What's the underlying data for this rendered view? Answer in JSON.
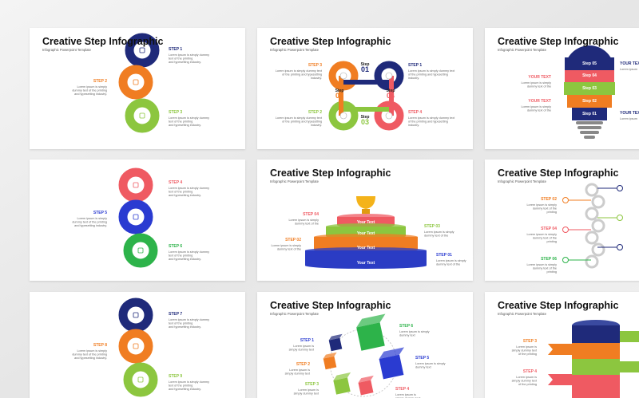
{
  "slides": [
    {
      "title": "Creative Step Infographic",
      "subtitle": "Infographic Powerpoint Template",
      "steps": [
        {
          "label": "STEP 1",
          "lines": [
            "Lorem ipsum is simply dummy",
            "text of the printing",
            "and typesetting industry."
          ]
        },
        {
          "label": "STEP 2",
          "lines": [
            "Lorem ipsum is simply",
            "dummy text of the printing",
            "and typesetting industry."
          ]
        },
        {
          "label": "STEP 3",
          "lines": [
            "Lorem ipsum is simply dummy",
            "text of the printing",
            "and typesetting industry."
          ]
        }
      ]
    },
    {
      "steps": [
        {
          "label": "STEP 4",
          "lines": [
            "Lorem ipsum is simply dummy",
            "text of the printing",
            "and typesetting industry."
          ]
        },
        {
          "label": "STEP 5",
          "lines": [
            "Lorem ipsum is simply",
            "dummy text of the printing",
            "and typesetting industry."
          ]
        },
        {
          "label": "STEP 6",
          "lines": [
            "Lorem ipsum is simply dummy",
            "text of the printing",
            "and typesetting industry."
          ]
        }
      ]
    },
    {
      "steps": [
        {
          "label": "STEP 7",
          "lines": [
            "Lorem ipsum is simply dummy",
            "text of the printing",
            "and typesetting industry."
          ]
        },
        {
          "label": "STEP 8",
          "lines": [
            "Lorem ipsum is simply",
            "dummy text of the printing",
            "and typesetting industry."
          ]
        },
        {
          "label": "STEP 9",
          "lines": [
            "Lorem ipsum is simply dummy",
            "text of the printing",
            "and typesetting industry."
          ]
        }
      ]
    },
    {
      "title": "Creative Step Infographic",
      "subtitle": "Infographic Powerpoint Template",
      "steps": [
        {
          "label": "STEP 3",
          "lines": [
            "Lorem ipsum is simply dummy text",
            "of the printing and typesetting",
            "industry."
          ]
        },
        {
          "label": "STEP 1",
          "lines": [
            "Lorem ipsum is simply dummy text",
            "of the printing and typesetting",
            "industry."
          ]
        },
        {
          "label": "STEP 2",
          "lines": [
            "Lorem ipsum is simply dummy text",
            "of the printing and typesetting",
            "industry."
          ]
        },
        {
          "label": "STEP 4",
          "lines": [
            "Lorem ipsum is simply dummy text",
            "of the printing and typesetting",
            "industry."
          ]
        }
      ],
      "shapes": [
        [
          "Step",
          "01"
        ],
        [
          "Step",
          "02"
        ],
        [
          "Step",
          "03"
        ],
        [
          "Step",
          "04"
        ]
      ]
    },
    {
      "title": "Creative Step Infographic",
      "subtitle": "Infographic Powerpoint Template",
      "steps": [
        {
          "label": "YOUR TEXT",
          "lines": [
            "Lorem ipsum"
          ]
        },
        {
          "label": "YOUR TEXT",
          "lines": [
            "Lorem ipsum is simply",
            "dummy text of the"
          ]
        },
        {
          "label": "YOUR TEXT",
          "lines": [
            "Lorem ipsum is simply",
            "dummy text of the"
          ]
        },
        {
          "label": "YOUR TEXT",
          "lines": [
            "Lorem ipsum"
          ]
        }
      ],
      "shapes": [
        [
          "Step 05"
        ],
        [
          "Step 04"
        ],
        [
          "Step 03"
        ],
        [
          "Step 02"
        ],
        [
          "Step 01"
        ]
      ]
    },
    {
      "title": "Creative Step Infographic",
      "subtitle": "Infographic Powerpoint Template",
      "steps": [
        {
          "label": "STEP 04",
          "lines": [
            "Lorem ipsum is simply",
            "dummy text of the"
          ]
        },
        {
          "label": "STEP 03",
          "lines": [
            "Lorem ipsum is simply",
            "dummy text of the"
          ]
        },
        {
          "label": "STEP 02",
          "lines": [
            "Lorem ipsum is simply",
            "dummy text of the"
          ]
        },
        {
          "label": "STEP 01",
          "lines": [
            "Lorem ipsum is simply",
            "dummy text of the"
          ]
        }
      ],
      "shapes": [
        [
          "Your Text"
        ],
        [
          "Your Text"
        ],
        [
          "Your Text"
        ],
        [
          "Your Text"
        ]
      ]
    },
    {
      "title": "Creative Step Infographic",
      "subtitle": "Infographic Powerpoint Template",
      "steps": [
        {
          "label": "STEP 02",
          "lines": [
            "Lorem ipsum is simply",
            "dummy text of the",
            "printing"
          ]
        },
        {
          "label": "STEP 04",
          "lines": [
            "Lorem ipsum is simply",
            "dummy text of the",
            "printing"
          ]
        },
        {
          "label": "STEP 06",
          "lines": [
            "Lorem ipsum is simply",
            "dummy text of the",
            "printing"
          ]
        }
      ]
    },
    {
      "title": "Creative Step Infographic",
      "subtitle": "Infographic Powerpoint Template",
      "steps": [
        {
          "label": "STEP 6",
          "lines": [
            "Lorem ipsum is simply",
            "dummy text"
          ]
        },
        {
          "label": "STEP 1",
          "lines": [
            "Lorem ipsum is",
            "simply dummy text"
          ]
        },
        {
          "label": "STEP 5",
          "lines": [
            "Lorem ipsum is simply",
            "dummy text"
          ]
        },
        {
          "label": "STEP 2",
          "lines": [
            "Lorem ipsum is",
            "simply dummy text"
          ]
        },
        {
          "label": "STEP 3",
          "lines": [
            "Lorem ipsum is",
            "simply dummy text"
          ]
        },
        {
          "label": "STEP 4",
          "lines": [
            "Lorem ipsum is",
            "simply dummy text"
          ]
        }
      ]
    },
    {
      "title": "Creative Step Infographic",
      "subtitle": "Infographic Powerpoint Template",
      "steps": [
        {
          "label": "STEP 3",
          "lines": [
            "Lorem ipsum is",
            "simply dummy text",
            "of the printing"
          ]
        },
        {
          "label": "STEP 4",
          "lines": [
            "Lorem ipsum is",
            "simply dummy text",
            "of the printing"
          ]
        }
      ]
    }
  ]
}
